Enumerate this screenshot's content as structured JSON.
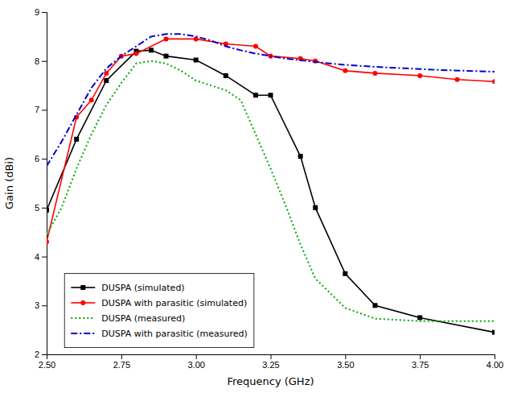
{
  "chart_data": {
    "type": "line",
    "xlabel": "Frequency (GHz)",
    "ylabel": "Gain (dBi)",
    "xlim": [
      2.5,
      4.0
    ],
    "ylim": [
      2,
      9
    ],
    "xticks": [
      {
        "value": 2.5,
        "label": "2.50"
      },
      2.75,
      {
        "value": 3.0,
        "label": "3.00"
      },
      3.25,
      {
        "value": 3.5,
        "label": "3.50"
      },
      3.75,
      {
        "value": 4.0,
        "label": "4.00"
      }
    ],
    "yticks": [
      2,
      3,
      4,
      5,
      6,
      7,
      8,
      9
    ],
    "grid": false,
    "legend": "lower left",
    "series": [
      {
        "name": "DUSPA (simulated)",
        "color": "#000000",
        "marker": "square",
        "line_style": "solid",
        "x": [
          2.5,
          2.6,
          2.7,
          2.8,
          2.85,
          2.9,
          3.0,
          3.1,
          3.2,
          3.25,
          3.35,
          3.4,
          3.5,
          3.6,
          3.75,
          4.0
        ],
        "values": [
          4.95,
          6.4,
          7.6,
          8.2,
          8.22,
          8.1,
          8.02,
          7.7,
          7.3,
          7.3,
          6.05,
          5.0,
          3.65,
          3.0,
          2.75,
          2.45
        ]
      },
      {
        "name": "DUSPA with parasitic (simulated)",
        "color": "#ff0000",
        "marker": "circle",
        "line_style": "solid",
        "x": [
          2.5,
          2.6,
          2.65,
          2.7,
          2.75,
          2.8,
          2.9,
          3.0,
          3.1,
          3.2,
          3.25,
          3.35,
          3.4,
          3.5,
          3.6,
          3.75,
          3.875,
          4.0
        ],
        "values": [
          4.3,
          6.85,
          7.2,
          7.75,
          8.1,
          8.15,
          8.45,
          8.45,
          8.35,
          8.3,
          8.1,
          8.05,
          8.0,
          7.8,
          7.75,
          7.7,
          7.62,
          7.58
        ]
      },
      {
        "name": "DUSPA (measured)",
        "color": "#00aa00",
        "marker": "none",
        "line_style": "dotted",
        "x": [
          2.5,
          2.55,
          2.6,
          2.65,
          2.7,
          2.75,
          2.8,
          2.85,
          2.9,
          2.95,
          3.0,
          3.05,
          3.1,
          3.15,
          3.2,
          3.25,
          3.3,
          3.35,
          3.4,
          3.5,
          3.6,
          3.75,
          4.0
        ],
        "values": [
          4.45,
          5.0,
          5.8,
          6.5,
          7.1,
          7.55,
          7.95,
          8.0,
          7.95,
          7.8,
          7.6,
          7.5,
          7.4,
          7.2,
          6.5,
          5.8,
          5.05,
          4.25,
          3.55,
          2.95,
          2.73,
          2.68,
          2.68
        ]
      },
      {
        "name": "DUSPA with parasitic (measured)",
        "color": "#0000cc",
        "marker": "none",
        "line_style": "dashdot",
        "x": [
          2.5,
          2.55,
          2.6,
          2.65,
          2.7,
          2.75,
          2.8,
          2.85,
          2.9,
          2.95,
          3.0,
          3.05,
          3.1,
          3.15,
          3.2,
          3.25,
          3.3,
          3.4,
          3.5,
          3.6,
          3.7,
          3.8,
          3.9,
          4.0
        ],
        "values": [
          5.85,
          6.35,
          6.9,
          7.45,
          7.85,
          8.1,
          8.3,
          8.5,
          8.55,
          8.55,
          8.5,
          8.42,
          8.3,
          8.22,
          8.15,
          8.1,
          8.05,
          7.98,
          7.92,
          7.88,
          7.85,
          7.82,
          7.8,
          7.78
        ]
      }
    ]
  }
}
